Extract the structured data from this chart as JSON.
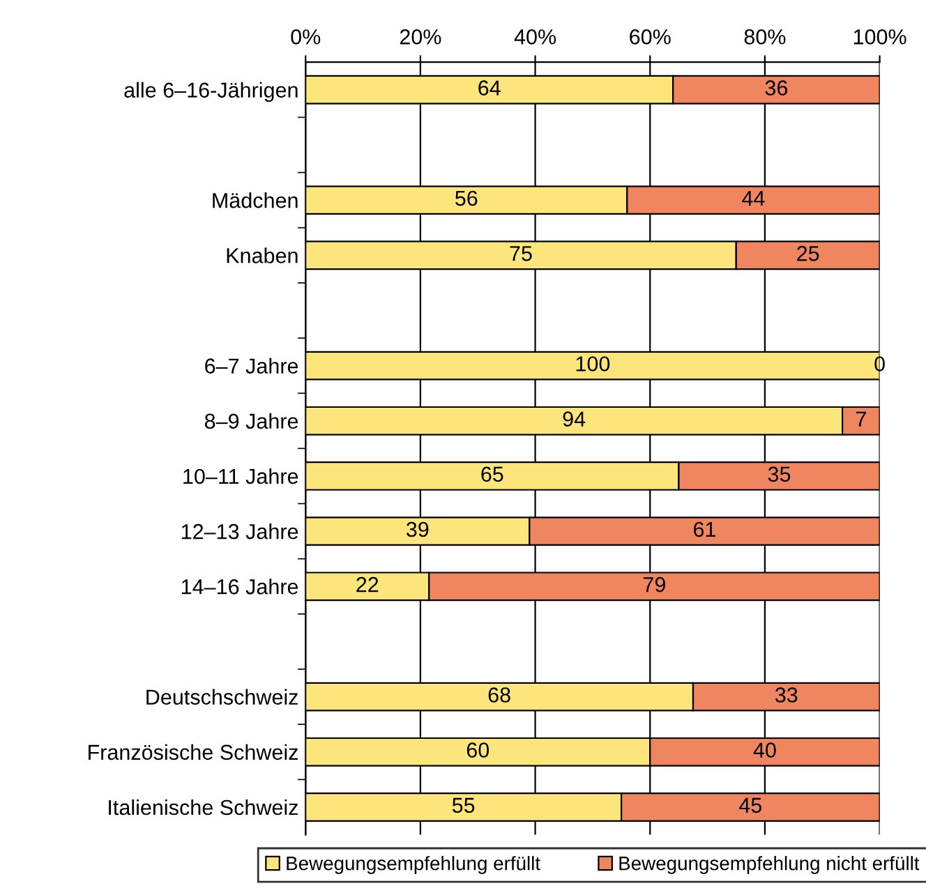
{
  "chart_data": {
    "type": "bar",
    "orientation": "horizontal",
    "stacked": true,
    "categories": [
      "alle 6–16-Jährigen",
      null,
      "Mädchen",
      "Knaben",
      null,
      "6–7 Jahre",
      "8–9 Jahre",
      "10–11 Jahre",
      "12–13 Jahre",
      "14–16 Jahre",
      null,
      "Deutschschweiz",
      "Französische Schweiz",
      "Italienische Schweiz"
    ],
    "series": [
      {
        "name": "Bewegungsempfehlung erfüllt",
        "color": "#fce57b",
        "values": [
          64,
          null,
          56,
          75,
          null,
          100,
          93.5,
          65,
          39,
          21.5,
          null,
          67.5,
          60,
          55
        ],
        "value_labels": [
          "64",
          null,
          "56",
          "75",
          null,
          "100",
          "94",
          "65",
          "39",
          "22",
          null,
          "68",
          "60",
          "55"
        ]
      },
      {
        "name": "Bewegungsempfehlung nicht erfüllt",
        "color": "#ef8660",
        "values": [
          36,
          null,
          44,
          25,
          null,
          0,
          6.5,
          35,
          61,
          78.5,
          null,
          32.5,
          40,
          45
        ],
        "value_labels": [
          "36",
          null,
          "44",
          "25",
          null,
          "0",
          "7",
          "35",
          "61",
          "79",
          null,
          "33",
          "40",
          "45"
        ]
      }
    ],
    "xlim": [
      0,
      100
    ],
    "xticks": [
      {
        "value": 0,
        "label": "0%"
      },
      {
        "value": 20,
        "label": "20%"
      },
      {
        "value": 40,
        "label": "40%"
      },
      {
        "value": 60,
        "label": "60%"
      },
      {
        "value": 80,
        "label": "80%"
      },
      {
        "value": 100,
        "label": "100%"
      }
    ],
    "grid": "x",
    "legend": "bottom"
  }
}
